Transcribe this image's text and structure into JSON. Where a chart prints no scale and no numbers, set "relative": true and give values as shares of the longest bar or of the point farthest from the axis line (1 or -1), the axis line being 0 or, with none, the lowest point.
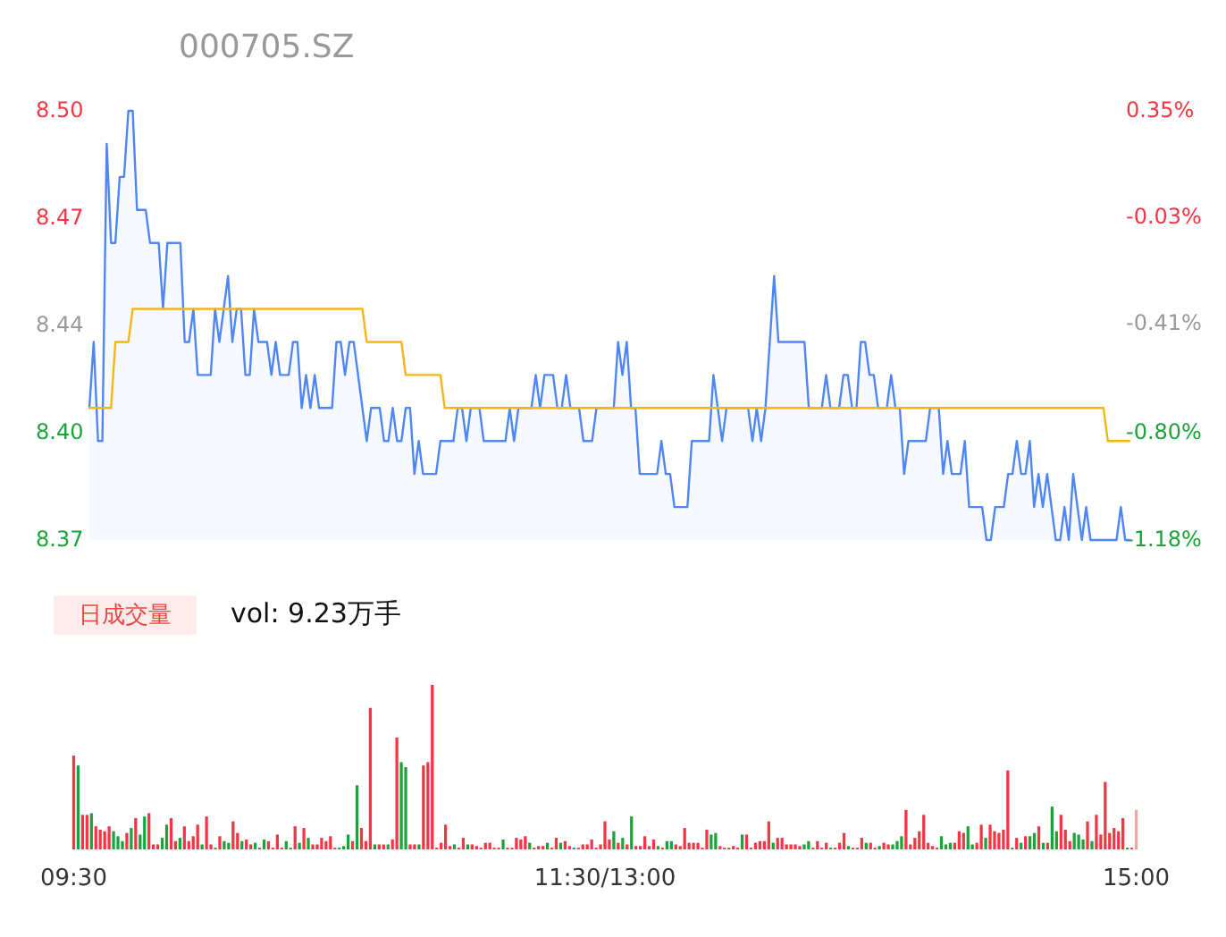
{
  "chart_data": [
    {
      "type": "line",
      "title": "000705.SZ",
      "tick_labels": "y",
      "categories": [
        null,
        null,
        null,
        null,
        null,
        null,
        null,
        null,
        null,
        null,
        null,
        null,
        null,
        null,
        null,
        null,
        null,
        null,
        null,
        null,
        null,
        null,
        null,
        null,
        null,
        null,
        null,
        null,
        null,
        null,
        null,
        null,
        null,
        null,
        null,
        null,
        null,
        null,
        null,
        null,
        null,
        null,
        null,
        null,
        null,
        null,
        null,
        null,
        null,
        null,
        null,
        null,
        null,
        null,
        null,
        null,
        null,
        null,
        null,
        null,
        null,
        null,
        null,
        null,
        null,
        null,
        null,
        null,
        null,
        null,
        null,
        null,
        null,
        null,
        null,
        null,
        null,
        null,
        null,
        null,
        null,
        null,
        null,
        null,
        null,
        null,
        null,
        null,
        null,
        null,
        null,
        null,
        null,
        null,
        null,
        null,
        null,
        null,
        null,
        null,
        null,
        null,
        null,
        null,
        null,
        null,
        null,
        null,
        null,
        null,
        null,
        null,
        null,
        null,
        null,
        null,
        null,
        null,
        null,
        null,
        null,
        null,
        null,
        null,
        null,
        null,
        null,
        null,
        null,
        null,
        null,
        null,
        null,
        null,
        null,
        null,
        null,
        null,
        null,
        null,
        null,
        null,
        null,
        null,
        null,
        null,
        null,
        null,
        null,
        null,
        null,
        null,
        null,
        null,
        null,
        null,
        null,
        null,
        null,
        null,
        null,
        null,
        null,
        null,
        null,
        null,
        null,
        null,
        null,
        null,
        null,
        null,
        null,
        null,
        null,
        null,
        null,
        null,
        null,
        null,
        null,
        null,
        null,
        null,
        null,
        null,
        null,
        null,
        null,
        null,
        null,
        null,
        null,
        null,
        null,
        null,
        null,
        null,
        null,
        null,
        null,
        null,
        null,
        null,
        null,
        null,
        null,
        null,
        null,
        null,
        null,
        null,
        null,
        null,
        null,
        null,
        null,
        null,
        null,
        null,
        null,
        null,
        null,
        null,
        null,
        null,
        null,
        null,
        null,
        null,
        null,
        null,
        null,
        null,
        null,
        null,
        null,
        null,
        null,
        null,
        null
      ],
      "ylim": [
        8.37,
        8.5
      ],
      "yticks": [
        8.37,
        {
          "value": 8.4025,
          "label": "8.40"
        },
        {
          "value": 8.435,
          "label": "8.44"
        },
        {
          "value": 8.4675,
          "label": "8.47"
        },
        {
          "value": 8.5,
          "label": "8.50"
        }
      ],
      "y2lim": [
        -1.18,
        0.35
      ],
      "y2ticks": [
        {
          "value": -1.18,
          "label": "-1.18%"
        },
        {
          "value": -0.8,
          "label": "-0.80%"
        },
        {
          "value": -0.41,
          "label": "-0.41%"
        },
        {
          "value": -0.03,
          "label": "-0.03%"
        },
        {
          "value": 0.35,
          "label": "0.35%"
        }
      ],
      "series": [
        {
          "type": "area",
          "color": "#4e86f7",
          "values": [
            8.41,
            8.43,
            8.4,
            8.4,
            8.49,
            8.46,
            8.46,
            8.48,
            8.48,
            8.5,
            8.5,
            8.47,
            8.47,
            8.47,
            8.46,
            8.46,
            8.46,
            8.44,
            8.46,
            8.46,
            8.46,
            8.46,
            8.43,
            8.43,
            8.44,
            8.42,
            8.42,
            8.42,
            8.42,
            8.44,
            8.43,
            8.44,
            8.45,
            8.43,
            8.44,
            8.44,
            8.42,
            8.42,
            8.44,
            8.43,
            8.43,
            8.43,
            8.42,
            8.43,
            8.42,
            8.42,
            8.42,
            8.43,
            8.43,
            8.41,
            8.42,
            8.41,
            8.42,
            8.41,
            8.41,
            8.41,
            8.41,
            8.43,
            8.43,
            8.42,
            8.43,
            8.43,
            8.42,
            8.41,
            8.4,
            8.41,
            8.41,
            8.41,
            8.4,
            8.4,
            8.41,
            8.4,
            8.4,
            8.41,
            8.41,
            8.39,
            8.4,
            8.39,
            8.39,
            8.39,
            8.39,
            8.4,
            8.4,
            8.4,
            8.4,
            8.41,
            8.41,
            8.4,
            8.41,
            8.41,
            8.41,
            8.4,
            8.4,
            8.4,
            8.4,
            8.4,
            8.4,
            8.41,
            8.4,
            8.41,
            8.41,
            8.41,
            8.41,
            8.42,
            8.41,
            8.42,
            8.42,
            8.42,
            8.41,
            8.41,
            8.42,
            8.41,
            8.41,
            8.41,
            8.4,
            8.4,
            8.4,
            8.41,
            8.41,
            8.41,
            8.41,
            8.41,
            8.43,
            8.42,
            8.43,
            8.41,
            8.41,
            8.39,
            8.39,
            8.39,
            8.39,
            8.39,
            8.4,
            8.39,
            8.39,
            8.38,
            8.38,
            8.38,
            8.38,
            8.4,
            8.4,
            8.4,
            8.4,
            8.4,
            8.42,
            8.41,
            8.4,
            8.41,
            8.41,
            8.41,
            8.41,
            8.41,
            8.41,
            8.4,
            8.41,
            8.4,
            8.41,
            8.43,
            8.45,
            8.43,
            8.43,
            8.43,
            8.43,
            8.43,
            8.43,
            8.43,
            8.41,
            8.41,
            8.41,
            8.41,
            8.42,
            8.41,
            8.41,
            8.41,
            8.42,
            8.42,
            8.41,
            8.41,
            8.43,
            8.43,
            8.42,
            8.42,
            8.41,
            8.41,
            8.41,
            8.42,
            8.41,
            8.41,
            8.39,
            8.4,
            8.4,
            8.4,
            8.4,
            8.4,
            8.41,
            8.41,
            8.41,
            8.39,
            8.4,
            8.39,
            8.39,
            8.39,
            8.4,
            8.38,
            8.38,
            8.38,
            8.38,
            8.37,
            8.37,
            8.38,
            8.38,
            8.38,
            8.39,
            8.39,
            8.4,
            8.39,
            8.39,
            8.4,
            8.38,
            8.39,
            8.38,
            8.39,
            8.38,
            8.37,
            8.37,
            8.38,
            8.37,
            8.39,
            8.38,
            8.37,
            8.38,
            8.37,
            8.37,
            8.37,
            8.37,
            8.37,
            8.37,
            8.37,
            8.38,
            8.37,
            8.37
          ]
        },
        {
          "type": "line",
          "color": "#f5b517",
          "values": [
            8.41,
            8.41,
            8.41,
            8.41,
            8.41,
            8.41,
            8.43,
            8.43,
            8.43,
            8.43,
            8.44,
            8.44,
            8.44,
            8.44,
            8.44,
            8.44,
            8.44,
            8.44,
            8.44,
            8.44,
            8.44,
            8.44,
            8.44,
            8.44,
            8.44,
            8.44,
            8.44,
            8.44,
            8.44,
            8.44,
            8.44,
            8.44,
            8.44,
            8.44,
            8.44,
            8.44,
            8.44,
            8.44,
            8.44,
            8.44,
            8.44,
            8.44,
            8.44,
            8.44,
            8.44,
            8.44,
            8.44,
            8.44,
            8.44,
            8.44,
            8.44,
            8.44,
            8.44,
            8.44,
            8.44,
            8.44,
            8.44,
            8.44,
            8.44,
            8.44,
            8.44,
            8.44,
            8.44,
            8.44,
            8.43,
            8.43,
            8.43,
            8.43,
            8.43,
            8.43,
            8.43,
            8.43,
            8.43,
            8.42,
            8.42,
            8.42,
            8.42,
            8.42,
            8.42,
            8.42,
            8.42,
            8.42,
            8.41,
            8.41,
            8.41,
            8.41,
            8.41,
            8.41,
            8.41,
            8.41,
            8.41,
            8.41,
            8.41,
            8.41,
            8.41,
            8.41,
            8.41,
            8.41,
            8.41,
            8.41,
            8.41,
            8.41,
            8.41,
            8.41,
            8.41,
            8.41,
            8.41,
            8.41,
            8.41,
            8.41,
            8.41,
            8.41,
            8.41,
            8.41,
            8.41,
            8.41,
            8.41,
            8.41,
            8.41,
            8.41,
            8.41,
            8.41,
            8.41,
            8.41,
            8.41,
            8.41,
            8.41,
            8.41,
            8.41,
            8.41,
            8.41,
            8.41,
            8.41,
            8.41,
            8.41,
            8.41,
            8.41,
            8.41,
            8.41,
            8.41,
            8.41,
            8.41,
            8.41,
            8.41,
            8.41,
            8.41,
            8.41,
            8.41,
            8.41,
            8.41,
            8.41,
            8.41,
            8.41,
            8.41,
            8.41,
            8.41,
            8.41,
            8.41,
            8.41,
            8.41,
            8.41,
            8.41,
            8.41,
            8.41,
            8.41,
            8.41,
            8.41,
            8.41,
            8.41,
            8.41,
            8.41,
            8.41,
            8.41,
            8.41,
            8.41,
            8.41,
            8.41,
            8.41,
            8.41,
            8.41,
            8.41,
            8.41,
            8.41,
            8.41,
            8.41,
            8.41,
            8.41,
            8.41,
            8.41,
            8.41,
            8.41,
            8.41,
            8.41,
            8.41,
            8.41,
            8.41,
            8.41,
            8.41,
            8.41,
            8.41,
            8.41,
            8.41,
            8.41,
            8.41,
            8.41,
            8.41,
            8.41,
            8.41,
            8.41,
            8.41,
            8.41,
            8.41,
            8.41,
            8.41,
            8.41,
            8.41,
            8.41,
            8.41,
            8.41,
            8.41,
            8.41,
            8.41,
            8.41,
            8.41,
            8.41,
            8.41,
            8.41,
            8.41,
            8.41,
            8.41,
            8.41,
            8.41,
            8.41,
            8.41,
            8.41,
            8.4,
            8.4,
            8.4,
            8.4,
            8.4,
            8.4
          ]
        }
      ]
    },
    {
      "type": "bar",
      "title": "日成交量",
      "subtitle": "vol: 9.23万手",
      "relative": true,
      "categories": [
        "09:30",
        null,
        null,
        null,
        null,
        null,
        null,
        null,
        null,
        null,
        null,
        null,
        null,
        null,
        null,
        null,
        null,
        null,
        null,
        null,
        null,
        null,
        null,
        null,
        null,
        null,
        null,
        null,
        null,
        null,
        null,
        null,
        null,
        null,
        null,
        null,
        null,
        null,
        null,
        null,
        null,
        null,
        null,
        null,
        null,
        null,
        null,
        null,
        null,
        null,
        null,
        null,
        null,
        null,
        null,
        null,
        null,
        null,
        null,
        null,
        null,
        null,
        null,
        null,
        null,
        null,
        null,
        null,
        null,
        null,
        null,
        null,
        null,
        null,
        null,
        null,
        null,
        null,
        null,
        null,
        null,
        null,
        null,
        null,
        null,
        null,
        null,
        null,
        null,
        null,
        null,
        null,
        null,
        null,
        null,
        null,
        null,
        null,
        null,
        null,
        null,
        null,
        null,
        null,
        null,
        null,
        null,
        null,
        null,
        null,
        null,
        null,
        null,
        null,
        null,
        null,
        null,
        null,
        null,
        null,
        "11:30/13:00",
        null,
        null,
        null,
        null,
        null,
        null,
        null,
        null,
        null,
        null,
        null,
        null,
        null,
        null,
        null,
        null,
        null,
        null,
        null,
        null,
        null,
        null,
        null,
        null,
        null,
        null,
        null,
        null,
        null,
        null,
        null,
        null,
        null,
        null,
        null,
        null,
        null,
        null,
        null,
        null,
        null,
        null,
        null,
        null,
        null,
        null,
        null,
        null,
        null,
        null,
        null,
        null,
        null,
        null,
        null,
        null,
        null,
        null,
        null,
        null,
        null,
        null,
        null,
        null,
        null,
        null,
        null,
        null,
        null,
        null,
        null,
        null,
        null,
        null,
        null,
        null,
        null,
        null,
        null,
        null,
        null,
        null,
        null,
        null,
        null,
        null,
        null,
        null,
        null,
        null,
        null,
        null,
        null,
        null,
        null,
        null,
        null,
        null,
        null,
        null,
        null,
        null,
        null,
        null,
        null,
        null,
        null,
        null,
        null,
        null,
        null,
        null,
        null,
        null,
        null,
        null,
        null,
        null,
        null,
        "15:00"
      ],
      "values": [
        0.57,
        0.51,
        0.21,
        0.21,
        0.22,
        0.14,
        0.12,
        0.11,
        0.14,
        0.11,
        0.08,
        0.05,
        0.1,
        0.13,
        0.19,
        0.09,
        0.2,
        0.22,
        0.03,
        0.03,
        0.07,
        0.15,
        0.19,
        0.05,
        0.07,
        0.14,
        0.05,
        0.08,
        0.15,
        0.03,
        0.2,
        0.03,
        0.01,
        0.08,
        0.05,
        0.04,
        0.17,
        0.1,
        0.05,
        0.06,
        0.03,
        0.04,
        0.01,
        0.06,
        0.05,
        0.01,
        0.09,
        0.01,
        0.05,
        0.01,
        0.14,
        0.04,
        0.13,
        0.07,
        0.03,
        0.03,
        0.07,
        0.05,
        0.08,
        0.01,
        0.01,
        0.02,
        0.09,
        0.05,
        0.39,
        0.13,
        0.05,
        0.86,
        0.03,
        0.03,
        0.03,
        0.03,
        0.06,
        0.68,
        0.53,
        0.5,
        0.03,
        0.03,
        0.03,
        0.51,
        0.53,
        1.0,
        0.01,
        0.04,
        0.15,
        0.02,
        0.03,
        0.01,
        0.07,
        0.03,
        0.03,
        0.02,
        0.01,
        0.04,
        0.04,
        0.01,
        0.01,
        0.06,
        0.01,
        0.01,
        0.07,
        0.06,
        0.08,
        0.04,
        0.01,
        0.02,
        0.02,
        0.04,
        0.01,
        0.07,
        0.04,
        0.05,
        0.02,
        0.01,
        0.01,
        0.03,
        0.03,
        0.06,
        0.01,
        0.03,
        0.17,
        0.06,
        0.11,
        0.04,
        0.07,
        0.03,
        0.2,
        0.02,
        0.02,
        0.08,
        0.02,
        0.06,
        0.02,
        0.01,
        0.05,
        0.05,
        0.03,
        0.02,
        0.13,
        0.04,
        0.04,
        0.04,
        0.01,
        0.12,
        0.09,
        0.1,
        0.02,
        0.01,
        0.01,
        0.02,
        0.01,
        0.09,
        0.09,
        0.01,
        0.04,
        0.05,
        0.05,
        0.17,
        0.04,
        0.07,
        0.07,
        0.03,
        0.03,
        0.03,
        0.02,
        0.03,
        0.05,
        0.01,
        0.05,
        0.01,
        0.04,
        0.01,
        0.01,
        0.04,
        0.1,
        0.02,
        0.01,
        0.01,
        0.07,
        0.04,
        0.04,
        0.01,
        0.02,
        0.04,
        0.03,
        0.03,
        0.05,
        0.08,
        0.24,
        0.03,
        0.07,
        0.11,
        0.21,
        0.04,
        0.02,
        0.01,
        0.08,
        0.03,
        0.04,
        0.04,
        0.11,
        0.1,
        0.14,
        0.03,
        0.04,
        0.15,
        0.07,
        0.15,
        0.11,
        0.1,
        0.12,
        0.48,
        0.01,
        0.07,
        0.04,
        0.08,
        0.08,
        0.1,
        0.14,
        0.04,
        0.04,
        0.26,
        0.11,
        0.21,
        0.12,
        0.05,
        0.1,
        0.09,
        0.06,
        0.17,
        0.05,
        0.21,
        0.09,
        0.41,
        0.1,
        0.13,
        0.11,
        0.19,
        0.01,
        0.01,
        0.24
      ],
      "colors": [
        "#f23645",
        "#1ba33a",
        "#f23645",
        "#f23645",
        "#1ba33a",
        "#f23645",
        "#f23645",
        "#f23645",
        "#f23645",
        "#1ba33a",
        "#1ba33a",
        "#1ba33a",
        "#f23645",
        "#1ba33a",
        "#f23645",
        "#1ba33a",
        "#1ba33a",
        "#f23645",
        "#f23645",
        "#f23645",
        "#1ba33a",
        "#1ba33a",
        "#f23645",
        "#f23645",
        "#1ba33a",
        "#f23645",
        "#f23645",
        "#f23645",
        "#f23645",
        "#1ba33a",
        "#f23645",
        "#f23645",
        "#1ba33a",
        "#f23645",
        "#1ba33a",
        "#1ba33a",
        "#f23645",
        "#f23645",
        "#1ba33a",
        "#f23645",
        "#f23645",
        "#1ba33a",
        "#f23645",
        "#1ba33a",
        "#f23645",
        "#f23645",
        "#f23645",
        "#f23645",
        "#1ba33a",
        "#1ba33a",
        "#f23645",
        "#1ba33a",
        "#f23645",
        "#1ba33a",
        "#f23645",
        "#f23645",
        "#f23645",
        "#f23645",
        "#f23645",
        "#f23645",
        "#1ba33a",
        "#1ba33a",
        "#1ba33a",
        "#f23645",
        "#1ba33a",
        "#f23645",
        "#f23645",
        "#f23645",
        "#1ba33a",
        "#f23645",
        "#f23645",
        "#1ba33a",
        "#f23645",
        "#f23645",
        "#1ba33a",
        "#1ba33a",
        "#f23645",
        "#f23645",
        "#1ba33a",
        "#f23645",
        "#f23645",
        "#f23645",
        "#f23645",
        "#f23645",
        "#f23645",
        "#f23645",
        "#1ba33a",
        "#f23645",
        "#f23645",
        "#1ba33a",
        "#f23645",
        "#f23645",
        "#f23645",
        "#f23645",
        "#f23645",
        "#f23645",
        "#f23645",
        "#1ba33a",
        "#f23645",
        "#f23645",
        "#f23645",
        "#f23645",
        "#f23645",
        "#1ba33a",
        "#f23645",
        "#f23645",
        "#f23645",
        "#1ba33a",
        "#f23645",
        "#f23645",
        "#1ba33a",
        "#f23645",
        "#f23645",
        "#1ba33a",
        "#f23645",
        "#f23645",
        "#f23645",
        "#f23645",
        "#f23645",
        "#f23645",
        "#f23645",
        "#f23645",
        "#1ba33a",
        "#f23645",
        "#1ba33a",
        "#f23645",
        "#1ba33a",
        "#f23645",
        "#f23645",
        "#f23645",
        "#f23645",
        "#f23645",
        "#1ba33a",
        "#f23645",
        "#1ba33a",
        "#1ba33a",
        "#f23645",
        "#f23645",
        "#f23645",
        "#f23645",
        "#f23645",
        "#f23645",
        "#f23645",
        "#f23645",
        "#1ba33a",
        "#1ba33a",
        "#f23645",
        "#f23645",
        "#f23645",
        "#f23645",
        "#f23645",
        "#1ba33a",
        "#f23645",
        "#f23645",
        "#f23645",
        "#f23645",
        "#f23645",
        "#f23645",
        "#1ba33a",
        "#f23645",
        "#f23645",
        "#f23645",
        "#f23645",
        "#f23645",
        "#f23645",
        "#1ba33a",
        "#1ba33a",
        "#f23645",
        "#f23645",
        "#f23645",
        "#f23645",
        "#1ba33a",
        "#f23645",
        "#f23645",
        "#f23645",
        "#1ba33a",
        "#f23645",
        "#f23645",
        "#f23645",
        "#1ba33a",
        "#f23645",
        "#f23645",
        "#1ba33a",
        "#f23645",
        "#f23645",
        "#1ba33a",
        "#1ba33a",
        "#1ba33a",
        "#f23645",
        "#f23645",
        "#f23645",
        "#f23645",
        "#f23645",
        "#f23645",
        "#f23645",
        "#f23645",
        "#1ba33a",
        "#1ba33a",
        "#1ba33a",
        "#f23645",
        "#f23645",
        "#f23645",
        "#1ba33a",
        "#1ba33a",
        "#f23645",
        "#f23645",
        "#1ba33a",
        "#f23645",
        "#f23645",
        "#f23645",
        "#f23645",
        "#f23645",
        "#1ba33a",
        "#f23645",
        "#1ba33a",
        "#f23645",
        "#1ba33a",
        "#1ba33a",
        "#f23645",
        "#1ba33a",
        "#f23645",
        "#1ba33a",
        "#1ba33a",
        "#f23645",
        "#f23645",
        "#f23645",
        "#1ba33a",
        "#1ba33a",
        "#1ba33a",
        "#f23645",
        "#1ba33a",
        "#f23645",
        "#f23645",
        "#f23645",
        "#f23645",
        "#f23645",
        "#f23645",
        "#f23645",
        "#1ba33a",
        "#f23645",
        "#f5a3a8"
      ]
    }
  ]
}
